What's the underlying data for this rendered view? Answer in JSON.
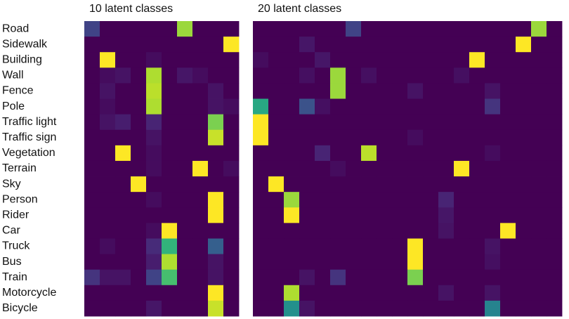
{
  "chart_data": [
    {
      "type": "heatmap",
      "title": "10 latent classes",
      "colormap": "viridis",
      "clim": [
        0,
        1
      ],
      "y_categories": [
        "Road",
        "Sidewalk",
        "Building",
        "Wall",
        "Fence",
        "Pole",
        "Traffic light",
        "Traffic sign",
        "Vegetation",
        "Terrain",
        "Sky",
        "Person",
        "Rider",
        "Car",
        "Truck",
        "Bus",
        "Train",
        "Motorcycle",
        "Bicycle"
      ],
      "values": [
        [
          0.2,
          0,
          0,
          0,
          0,
          0,
          0.85,
          0,
          0,
          0
        ],
        [
          0,
          0,
          0,
          0,
          0,
          0,
          0,
          0,
          0,
          1
        ],
        [
          0,
          1,
          0,
          0,
          0.03,
          0,
          0,
          0,
          0,
          0
        ],
        [
          0,
          0.03,
          0.05,
          0,
          0.88,
          0,
          0.06,
          0.03,
          0,
          0
        ],
        [
          0,
          0.05,
          0,
          0,
          0.9,
          0,
          0,
          0,
          0.05,
          0
        ],
        [
          0,
          0.03,
          0,
          0,
          0.88,
          0,
          0,
          0,
          0.05,
          0.03
        ],
        [
          0,
          0.05,
          0.08,
          0,
          0.1,
          0,
          0,
          0,
          0.8,
          0
        ],
        [
          0,
          0,
          0,
          0,
          0.05,
          0,
          0,
          0,
          0.92,
          0
        ],
        [
          0,
          0,
          1,
          0,
          0.03,
          0,
          0,
          0,
          0,
          0
        ],
        [
          0,
          0,
          0,
          0,
          0.03,
          0,
          0,
          1,
          0,
          0.03
        ],
        [
          0,
          0,
          0,
          1,
          0,
          0,
          0,
          0,
          0,
          0
        ],
        [
          0,
          0,
          0,
          0,
          0.03,
          0,
          0,
          0,
          1,
          0
        ],
        [
          0,
          0,
          0,
          0,
          0,
          0,
          0,
          0,
          1,
          0
        ],
        [
          0,
          0,
          0,
          0,
          0.03,
          1,
          0,
          0,
          0,
          0
        ],
        [
          0,
          0.03,
          0,
          0,
          0.12,
          0.65,
          0,
          0,
          0.3,
          0
        ],
        [
          0,
          0,
          0,
          0,
          0.08,
          0.88,
          0,
          0,
          0.05,
          0
        ],
        [
          0.15,
          0.05,
          0.05,
          0,
          0.2,
          0.7,
          0,
          0,
          0.05,
          0
        ],
        [
          0,
          0,
          0,
          0,
          0,
          0,
          0,
          0,
          1,
          0
        ],
        [
          0,
          0,
          0,
          0,
          0.06,
          0,
          0,
          0,
          0.92,
          0
        ]
      ]
    },
    {
      "type": "heatmap",
      "title": "20 latent classes",
      "colormap": "viridis",
      "clim": [
        0,
        1
      ],
      "values": [
        [
          0,
          0,
          0,
          0,
          0,
          0,
          0.2,
          0,
          0,
          0,
          0,
          0,
          0,
          0,
          0,
          0,
          0,
          0,
          0.85,
          0
        ],
        [
          0,
          0,
          0,
          0.06,
          0,
          0,
          0,
          0,
          0,
          0,
          0,
          0,
          0,
          0,
          0,
          0,
          0,
          1,
          0,
          0
        ],
        [
          0.03,
          0,
          0,
          0,
          0.06,
          0,
          0,
          0,
          0,
          0,
          0,
          0,
          0,
          0,
          1,
          0,
          0,
          0,
          0,
          0
        ],
        [
          0,
          0,
          0,
          0.04,
          0,
          0.85,
          0,
          0.04,
          0,
          0,
          0,
          0,
          0,
          0.04,
          0,
          0,
          0,
          0,
          0,
          0
        ],
        [
          0,
          0,
          0,
          0,
          0,
          0.85,
          0,
          0,
          0,
          0,
          0.05,
          0,
          0,
          0,
          0,
          0.05,
          0,
          0,
          0,
          0
        ],
        [
          0.6,
          0,
          0,
          0.25,
          0.04,
          0,
          0,
          0,
          0,
          0,
          0,
          0,
          0,
          0,
          0,
          0.15,
          0,
          0,
          0,
          0
        ],
        [
          1,
          0,
          0,
          0,
          0,
          0,
          0,
          0,
          0,
          0,
          0,
          0,
          0,
          0,
          0,
          0,
          0,
          0,
          0,
          0
        ],
        [
          1,
          0,
          0,
          0,
          0,
          0,
          0,
          0,
          0,
          0,
          0.03,
          0,
          0,
          0,
          0,
          0,
          0,
          0,
          0,
          0
        ],
        [
          0,
          0,
          0,
          0,
          0.1,
          0,
          0,
          0.9,
          0,
          0,
          0,
          0,
          0,
          0,
          0,
          0.03,
          0,
          0,
          0,
          0
        ],
        [
          0,
          0,
          0,
          0,
          0,
          0.03,
          0,
          0,
          0,
          0,
          0,
          0,
          0,
          1,
          0,
          0,
          0,
          0,
          0,
          0
        ],
        [
          0,
          1,
          0,
          0,
          0,
          0,
          0,
          0,
          0,
          0,
          0,
          0,
          0,
          0,
          0,
          0,
          0,
          0,
          0,
          0
        ],
        [
          0,
          0,
          0.85,
          0,
          0,
          0,
          0,
          0,
          0,
          0,
          0,
          0,
          0.1,
          0,
          0,
          0,
          0,
          0,
          0,
          0
        ],
        [
          0,
          0,
          1,
          0,
          0,
          0,
          0,
          0,
          0,
          0,
          0,
          0,
          0.06,
          0,
          0,
          0,
          0,
          0,
          0,
          0
        ],
        [
          0,
          0,
          0,
          0,
          0,
          0,
          0,
          0,
          0,
          0,
          0,
          0,
          0.05,
          0,
          0,
          0,
          1,
          0,
          0,
          0
        ],
        [
          0,
          0,
          0,
          0,
          0,
          0,
          0,
          0,
          0,
          0,
          1,
          0,
          0,
          0,
          0,
          0.05,
          0,
          0,
          0,
          0
        ],
        [
          0,
          0,
          0,
          0,
          0,
          0,
          0,
          0,
          0,
          0,
          1,
          0,
          0,
          0,
          0,
          0.04,
          0,
          0,
          0,
          0
        ],
        [
          0,
          0,
          0,
          0.05,
          0,
          0.15,
          0,
          0,
          0,
          0,
          0.8,
          0,
          0,
          0,
          0,
          0,
          0,
          0,
          0,
          0
        ],
        [
          0,
          0,
          0.88,
          0,
          0,
          0,
          0,
          0,
          0,
          0,
          0,
          0,
          0.05,
          0,
          0,
          0.05,
          0,
          0,
          0,
          0
        ],
        [
          0,
          0,
          0.5,
          0.05,
          0,
          0,
          0,
          0,
          0,
          0,
          0,
          0,
          0,
          0,
          0,
          0.45,
          0,
          0,
          0,
          0
        ]
      ]
    }
  ]
}
